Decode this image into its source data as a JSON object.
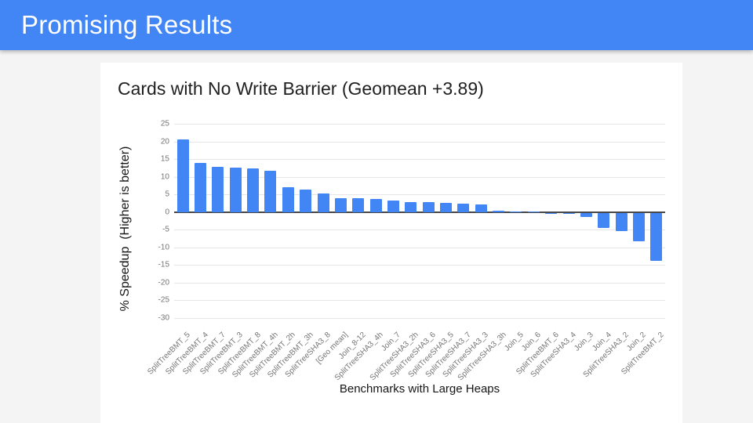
{
  "header": {
    "title": "Promising Results",
    "background_color": "#4285f4",
    "text_color": "#ffffff"
  },
  "chart_data": {
    "type": "bar",
    "title": "Cards with No Write Barrier (Geomean +3.89)",
    "xlabel": "Benchmarks with Large Heaps",
    "ylabel": "% Speedup  (Higher is better)",
    "ylim": [
      -30,
      25
    ],
    "yticks": [
      25,
      20,
      15,
      10,
      5,
      0,
      -5,
      -10,
      -15,
      -20,
      -25,
      -30
    ],
    "grid": true,
    "legend": "none",
    "bar_color": "#4285f4",
    "categories": [
      "SplitTreeBMT_5",
      "SplitTreeBMT_4",
      "SplitTreeBMT_7",
      "SplitTreeBMT_3",
      "SplitTreeBMT_8",
      "SplitTreeBMT_4h",
      "SplitTreeBMT_2h",
      "SplitTreeBMT_3h",
      "SplitTreeSHA3_8",
      "[Geo mean]",
      "Join_8-12",
      "SplitTreeSHA3_4h",
      "Join_7",
      "SplitTreeSHA3_2h",
      "SplitTreeSHA3_6",
      "SplitTreeSHA3_5",
      "SplitTreeSHA3_7",
      "SplitTreeSHA3_3",
      "SplitTreeSHA3_3h",
      "Join_5",
      "Join_6",
      "SplitTreeBMT_6",
      "SplitTreeSHA3_4",
      "Join_3",
      "Join_4",
      "SplitTreeSHA3_2",
      "Join_2",
      "SplitTreeBMT_2"
    ],
    "values": [
      20.5,
      14.0,
      12.9,
      12.5,
      12.3,
      11.8,
      7.1,
      6.4,
      5.2,
      3.89,
      3.85,
      3.8,
      3.2,
      2.9,
      2.85,
      2.7,
      2.4,
      2.2,
      0.3,
      0.1,
      0.1,
      -0.1,
      -0.3,
      -1.1,
      -4.3,
      -5.1,
      -8.0,
      -13.5
    ]
  }
}
